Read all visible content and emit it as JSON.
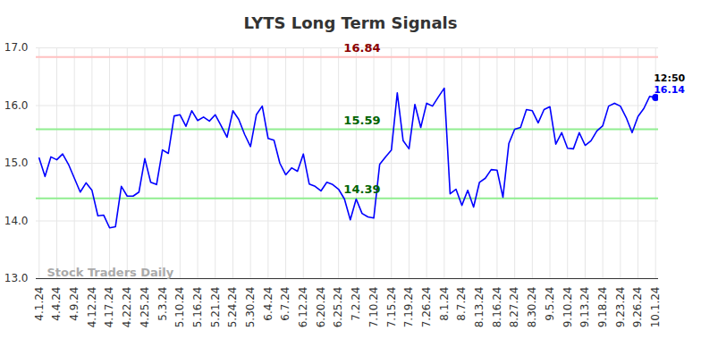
{
  "chart_data": {
    "type": "line",
    "title": "LYTS Long Term Signals",
    "categories": [
      "4.1.24",
      null,
      null,
      "4.4.24",
      null,
      null,
      "4.9.24",
      null,
      null,
      "4.12.24",
      null,
      null,
      "4.17.24",
      null,
      null,
      "4.22.24",
      null,
      null,
      "4.25.24",
      null,
      null,
      "5.3.24",
      null,
      null,
      "5.10.24",
      null,
      null,
      "5.16.24",
      null,
      null,
      "5.21.24",
      null,
      null,
      "5.24.24",
      null,
      null,
      "5.30.24",
      null,
      null,
      "6.4.24",
      null,
      null,
      "6.7.24",
      null,
      null,
      "6.12.24",
      null,
      null,
      "6.20.24",
      null,
      null,
      "6.25.24",
      null,
      null,
      "7.2.24",
      null,
      null,
      "7.10.24",
      null,
      null,
      "7.15.24",
      null,
      null,
      "7.19.24",
      null,
      null,
      "7.26.24",
      null,
      null,
      "8.1.24",
      null,
      null,
      "8.7.24",
      null,
      null,
      "8.13.24",
      null,
      null,
      "8.16.24",
      null,
      null,
      "8.27.24",
      null,
      null,
      "8.30.24",
      null,
      null,
      "9.5.24",
      null,
      null,
      "9.10.24",
      null,
      null,
      "9.13.24",
      null,
      null,
      "9.18.24",
      null,
      null,
      "9.23.24",
      null,
      null,
      "9.26.24",
      null,
      null,
      "10.1.24"
    ],
    "values": [
      15.09,
      14.77,
      15.11,
      15.06,
      15.16,
      14.98,
      14.74,
      14.5,
      14.66,
      14.53,
      14.09,
      14.1,
      13.88,
      13.9,
      14.6,
      14.43,
      14.43,
      14.5,
      15.08,
      14.67,
      14.63,
      15.23,
      15.17,
      15.82,
      15.84,
      15.64,
      15.91,
      15.74,
      15.8,
      15.73,
      15.84,
      15.65,
      15.45,
      15.91,
      15.76,
      15.5,
      15.29,
      15.84,
      15.99,
      15.43,
      15.4,
      15.0,
      14.8,
      14.92,
      14.86,
      15.16,
      14.64,
      14.6,
      14.52,
      14.67,
      14.63,
      14.55,
      14.38,
      14.02,
      14.38,
      14.13,
      14.07,
      14.05,
      14.98,
      15.11,
      15.23,
      16.22,
      15.39,
      15.25,
      16.02,
      15.62,
      16.04,
      15.99,
      16.15,
      16.3,
      14.47,
      14.55,
      14.27,
      14.53,
      14.24,
      14.67,
      14.74,
      14.89,
      14.88,
      14.41,
      15.34,
      15.59,
      15.62,
      15.93,
      15.91,
      15.7,
      15.93,
      15.98,
      15.33,
      15.53,
      15.26,
      15.25,
      15.53,
      15.31,
      15.39,
      15.56,
      15.65,
      15.99,
      16.04,
      15.99,
      15.79,
      15.53,
      15.81,
      15.95,
      16.16,
      16.14
    ],
    "color": "#0000ff",
    "ylim": [
      13,
      17
    ],
    "yticks": [
      13,
      14,
      15,
      16,
      17
    ],
    "grid": true,
    "levels": [
      {
        "value": 16.84,
        "color": "#ffc0c0",
        "text_color": "#8b0000"
      },
      {
        "value": 15.59,
        "color": "#90ee90",
        "text_color": "#006400"
      },
      {
        "value": 14.39,
        "color": "#90ee90",
        "text_color": "#006400"
      }
    ],
    "last_point_time": "12:50",
    "watermark": "Stock Traders Daily"
  }
}
